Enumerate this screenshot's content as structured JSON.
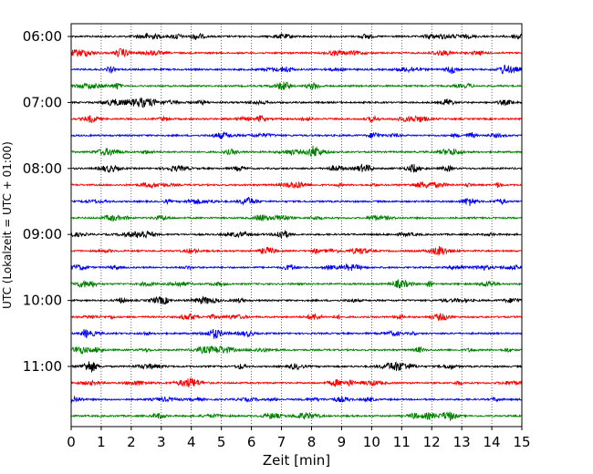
{
  "chart_data": {
    "type": "line",
    "xlabel": "Zeit  [min]",
    "ylabel": "UTC (Lokalzeit = UTC + 01:00)",
    "xlim": [
      0,
      15
    ],
    "x_ticks": [
      0,
      1,
      2,
      3,
      4,
      5,
      6,
      7,
      8,
      9,
      10,
      11,
      12,
      13,
      14,
      15
    ],
    "y_tick_labels": [
      "06:00",
      "07:00",
      "08:00",
      "09:00",
      "10:00",
      "11:00"
    ],
    "grid": "vertical dotted at each minute",
    "trace_start_times": [
      "06:00",
      "06:15",
      "06:30",
      "06:45",
      "07:00",
      "07:15",
      "07:30",
      "07:45",
      "08:00",
      "08:15",
      "08:30",
      "08:45",
      "09:00",
      "09:15",
      "09:30",
      "09:45",
      "10:00",
      "10:15",
      "10:30",
      "10:45",
      "11:00",
      "11:15",
      "11:30",
      "11:45"
    ],
    "trace_duration_minutes": 15,
    "color_cycle": [
      "#000000",
      "#ff0000",
      "#0000ff",
      "#008000"
    ]
  }
}
